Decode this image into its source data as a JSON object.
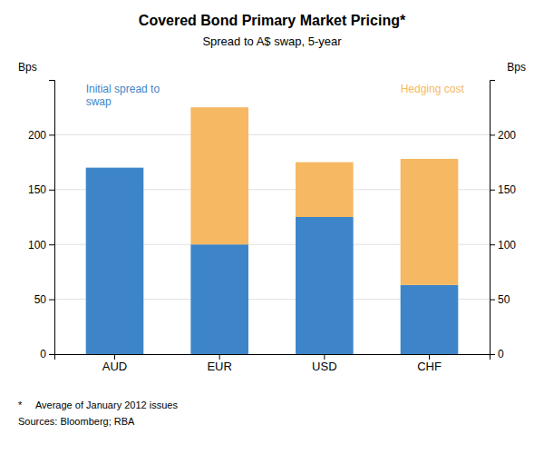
{
  "chart_data": {
    "type": "bar",
    "stacked": true,
    "title": "Covered Bond Primary Market Pricing*",
    "subtitle": "Spread to A$ swap, 5-year",
    "categories": [
      "AUD",
      "EUR",
      "USD",
      "CHF"
    ],
    "series": [
      {
        "color": "#3d85c8",
        "values": [
          170,
          100,
          125,
          63
        ]
      },
      {
        "color": "#f6b862",
        "values": [
          0,
          125,
          50,
          115
        ]
      }
    ],
    "ylim": [
      0,
      250
    ],
    "yticks": [
      0,
      50,
      100,
      150,
      200
    ],
    "y2lim": [
      0,
      250
    ],
    "y2ticks": [
      0,
      50,
      100,
      150,
      200
    ],
    "ylabel": "Bps",
    "y2label": "Bps",
    "grid": true,
    "annotations": [
      {
        "text": "Initial spread to\nswap",
        "color": "#3d85c8"
      },
      {
        "text": "Hedging cost",
        "color": "#f6b862"
      }
    ],
    "footnotes": [
      "*     Average of January 2012 issues",
      "Sources: Bloomberg; RBA"
    ]
  }
}
